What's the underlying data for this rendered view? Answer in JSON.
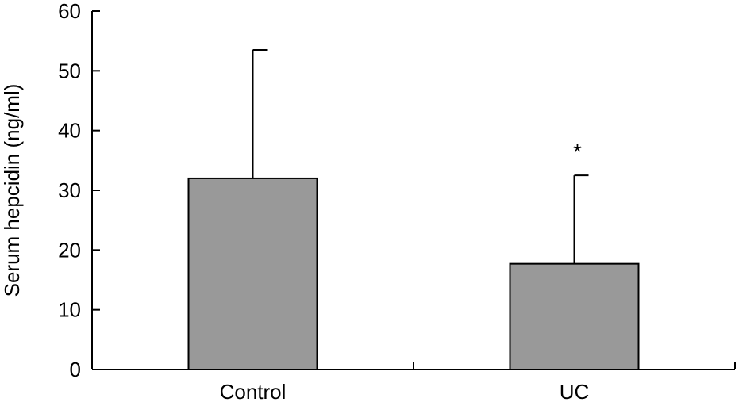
{
  "chart_data": {
    "type": "bar",
    "title": "",
    "xlabel": "",
    "ylabel": "Serum hepcidin (ng/ml)",
    "categories": [
      "Control",
      "UC"
    ],
    "values": [
      32,
      17.7
    ],
    "error_upper": [
      53.5,
      32.5
    ],
    "annotations": [
      {
        "category": "UC",
        "text": "*"
      }
    ],
    "ylim": [
      0,
      60
    ],
    "yticks": [
      0,
      10,
      20,
      30,
      40,
      50,
      60
    ],
    "bar_color": "#999999",
    "grid": false,
    "legend": "none"
  }
}
